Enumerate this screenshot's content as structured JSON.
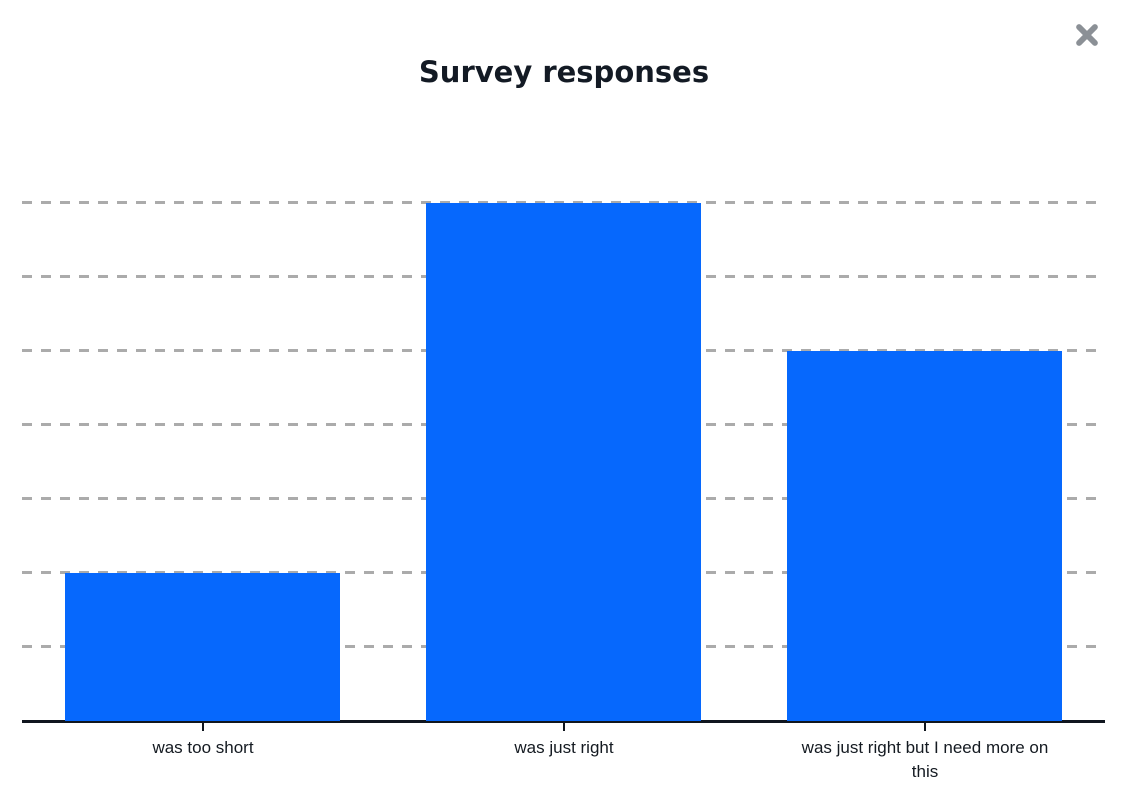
{
  "header": {
    "close_icon": "x-cross"
  },
  "chart_data": {
    "type": "bar",
    "title": "Survey responses",
    "categories": [
      "was too short",
      "was just right",
      "was just right but I need more on this"
    ],
    "values": [
      2,
      7,
      5
    ],
    "xlabel": "",
    "ylabel": "",
    "ylim": [
      0,
      7
    ],
    "y_tick_labels": "none (unlabeled dashed gridlines at each integer 1-7)",
    "grid": "horizontal dashed",
    "legend": "none"
  },
  "colors": {
    "bar": "#0668fd",
    "axis": "#10161f",
    "gridline": "#ababab",
    "title_text": "#131a24",
    "label_text": "#141a21",
    "close_icon": "#8b9096",
    "background": "#ffffff"
  }
}
